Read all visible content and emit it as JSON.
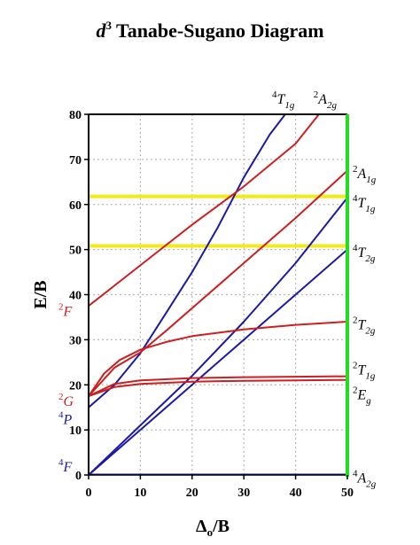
{
  "chart_data": {
    "type": "line",
    "title": {
      "prefix": "d",
      "sup": "3",
      "rest": " Tanabe-Sugano Diagram"
    },
    "xlabel": {
      "main": "Δ",
      "sub": "o",
      "rest": "/B"
    },
    "ylabel": "E/B",
    "xlim": [
      0,
      50
    ],
    "ylim": [
      0,
      80
    ],
    "xticks": [
      "0",
      "10",
      "20",
      "30",
      "40",
      "50"
    ],
    "yticks": [
      "0",
      "10",
      "20",
      "30",
      "40",
      "50",
      "60",
      "70",
      "80"
    ],
    "grid": true,
    "colors": {
      "red": "#cc1f1f",
      "blue": "#1a1aa6",
      "yellow": "#f2ea1a",
      "green": "#22dd22",
      "grid": "#b8b8b8",
      "axis": "#000000"
    },
    "left_labels": [
      {
        "id": "2F",
        "sup": "2",
        "main": "F",
        "y": 36.5,
        "color": "#cc1f1f"
      },
      {
        "id": "2G",
        "sup": "2",
        "main": "G",
        "y": 16.5,
        "color": "#cc1f1f"
      },
      {
        "id": "4P",
        "sup": "4",
        "main": "P",
        "y": 12.5,
        "color": "#1a1aa6"
      },
      {
        "id": "4F",
        "sup": "4",
        "main": "F",
        "y": 2.0,
        "color": "#1a1aa6"
      }
    ],
    "right_labels": [
      {
        "sup": "2",
        "main": "A",
        "sub": "1g",
        "y": 67.0
      },
      {
        "sup": "4",
        "main": "T",
        "sub": "1g",
        "y": 60.5
      },
      {
        "sup": "4",
        "main": "T",
        "sub": "2g",
        "y": 49.5
      },
      {
        "sup": "2",
        "main": "T",
        "sub": "2g",
        "y": 33.5
      },
      {
        "sup": "2",
        "main": "T",
        "sub": "1g",
        "y": 23.5
      },
      {
        "sup": "2",
        "main": "E",
        "sub": "g",
        "y": 18.0
      },
      {
        "sup": "4",
        "main": "A",
        "sub": "2g",
        "y": -0.5
      }
    ],
    "top_labels": [
      {
        "sup": "4",
        "main": "T",
        "sub": "1g",
        "x": 37.5
      },
      {
        "sup": "2",
        "main": "A",
        "sub": "2g",
        "x": 45.5
      }
    ],
    "highlight_lines": [
      {
        "name": "yellow-line-62",
        "y": 61.8,
        "color": "#f2ea1a"
      },
      {
        "name": "yellow-line-51",
        "y": 50.8,
        "color": "#f2ea1a"
      }
    ],
    "vertical_marker": {
      "x": 50,
      "color": "#22dd22"
    },
    "series": [
      {
        "id": "4A2g",
        "color": "#1a1aa6",
        "x": [
          0,
          50
        ],
        "y": [
          0,
          0
        ]
      },
      {
        "id": "4T2g",
        "color": "#1a1aa6",
        "x": [
          0,
          50
        ],
        "y": [
          0,
          50
        ]
      },
      {
        "id": "4T1g-F",
        "color": "#1a1aa6",
        "x": [
          0,
          10,
          20,
          30,
          40,
          50
        ],
        "y": [
          0,
          11,
          22,
          34,
          47,
          61.5
        ]
      },
      {
        "id": "4T1g-P",
        "color": "#1a1aa6",
        "x": [
          0,
          5,
          10,
          15,
          20,
          25,
          30,
          35,
          38
        ],
        "y": [
          15,
          20,
          27,
          36,
          45,
          55,
          66,
          75.5,
          80
        ]
      },
      {
        "id": "2Eg",
        "color": "#cc1f1f",
        "x": [
          0,
          5,
          10,
          20,
          30,
          40,
          50
        ],
        "y": [
          17.5,
          19.5,
          20.2,
          20.7,
          20.9,
          21.0,
          21.1
        ]
      },
      {
        "id": "2T1g",
        "color": "#cc1f1f",
        "x": [
          0,
          5,
          10,
          20,
          30,
          40,
          50
        ],
        "y": [
          17.5,
          20.2,
          21.0,
          21.5,
          21.7,
          21.8,
          21.9
        ]
      },
      {
        "id": "2T2g",
        "color": "#cc1f1f",
        "x": [
          0,
          3,
          6,
          10,
          15,
          20,
          30,
          40,
          50
        ],
        "y": [
          17.5,
          22.5,
          25.5,
          27.8,
          29.5,
          30.8,
          32.3,
          33.3,
          34.0
        ]
      },
      {
        "id": "2T2g-high",
        "color": "#cc1f1f",
        "x": [
          0,
          5,
          10,
          15,
          20,
          30,
          40,
          50
        ],
        "y": [
          17.5,
          23.8,
          27.2,
          32.0,
          37.0,
          47.0,
          57.0,
          67.5
        ]
      },
      {
        "id": "2A2g",
        "color": "#cc1f1f",
        "x": [
          0,
          10,
          20,
          30,
          40,
          44.5
        ],
        "y": [
          37.5,
          46.5,
          55.5,
          64,
          73.5,
          80
        ]
      }
    ]
  }
}
